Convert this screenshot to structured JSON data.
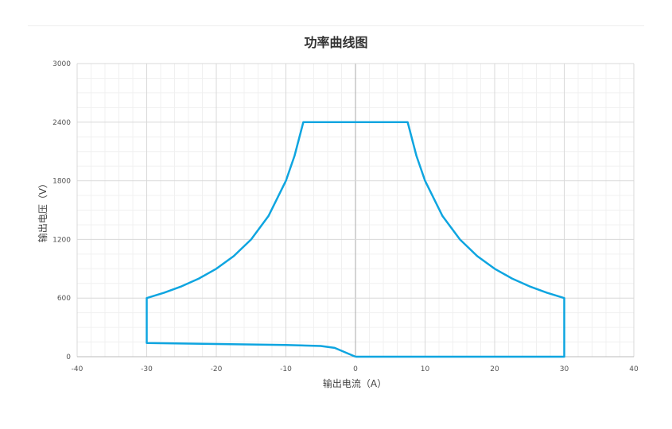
{
  "chart_data": {
    "type": "line",
    "title": "功率曲线图",
    "xlabel": "输出电流（A）",
    "ylabel": "输出电压（V）",
    "xlim": [
      -40,
      40
    ],
    "ylim": [
      0,
      3000
    ],
    "xticks": [
      -40,
      -30,
      -20,
      -10,
      0,
      10,
      20,
      30,
      40
    ],
    "yticks": [
      0,
      600,
      1200,
      1800,
      2400,
      3000
    ],
    "grid": true,
    "color": "#0ea5e0",
    "series": [
      {
        "x": [
          0,
          -3,
          -5,
          -10,
          -20,
          -30,
          -30,
          -27.5,
          -25,
          -22.5,
          -20,
          -17.5,
          -15,
          -12.5,
          -10,
          -8.75,
          -7.5,
          7.5,
          8.75,
          10,
          12.5,
          15,
          17.5,
          20,
          22.5,
          25,
          27.5,
          30,
          30,
          0
        ],
        "y": [
          0,
          90,
          110,
          120,
          130,
          140,
          600,
          655,
          720,
          800,
          900,
          1029,
          1200,
          1440,
          1800,
          2057,
          2400,
          2400,
          2057,
          1800,
          1440,
          1200,
          1029,
          900,
          800,
          720,
          655,
          600,
          0,
          0
        ]
      }
    ]
  }
}
